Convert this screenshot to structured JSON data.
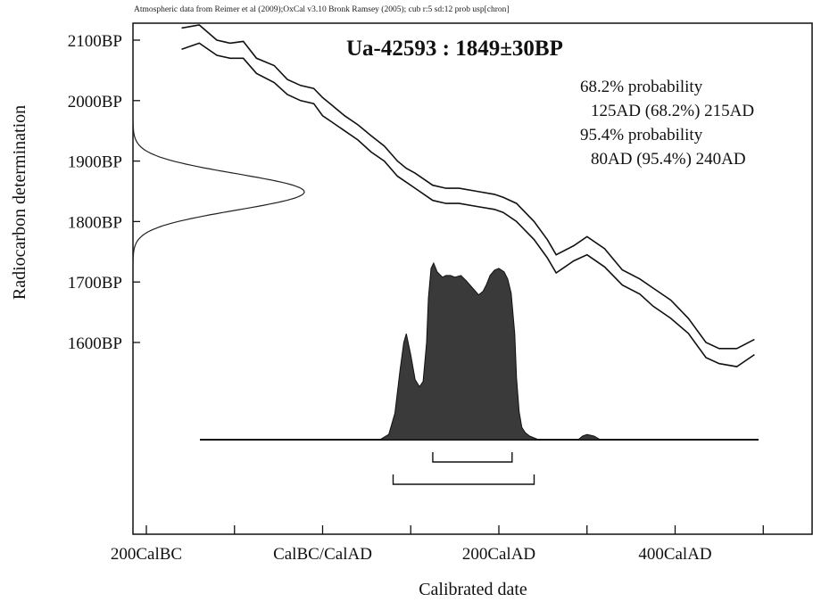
{
  "header_note": "Atmospheric data from Reimer et al (2009);OxCal v3.10 Bronk Ramsey (2005); cub r:5 sd:12 prob usp[chron]",
  "chart_data": {
    "type": "line",
    "title": "Ua-42593 : 1849±30BP",
    "xlabel": "Calibrated date",
    "ylabel": "Radiocarbon determination",
    "xlim": [
      -220,
      575
    ],
    "ylim": [
      1290,
      2125
    ],
    "x_ticks": [
      {
        "value": -200,
        "label": "200CalBC"
      },
      {
        "value": 0,
        "label": "CalBC/CalAD"
      },
      {
        "value": 200,
        "label": "200CalAD"
      },
      {
        "value": 400,
        "label": "400CalAD"
      }
    ],
    "x_minor_ticks": [
      -200,
      -100,
      0,
      100,
      200,
      300,
      400,
      500
    ],
    "y_ticks": [
      {
        "value": 2100,
        "label": "2100BP"
      },
      {
        "value": 2000,
        "label": "2000BP"
      },
      {
        "value": 1900,
        "label": "1900BP"
      },
      {
        "value": 1800,
        "label": "1800BP"
      },
      {
        "value": 1700,
        "label": "1700BP"
      },
      {
        "value": 1600,
        "label": "1600BP"
      }
    ],
    "calibration_curve": {
      "x": [
        -160,
        -140,
        -120,
        -105,
        -90,
        -75,
        -55,
        -40,
        -25,
        -10,
        0,
        10,
        25,
        40,
        55,
        70,
        85,
        95,
        105,
        125,
        140,
        155,
        175,
        195,
        205,
        220,
        240,
        255,
        265,
        285,
        300,
        320,
        340,
        360,
        375,
        395,
        415,
        435,
        450,
        470,
        490
      ],
      "upper": [
        2120,
        2125,
        2100,
        2095,
        2098,
        2070,
        2058,
        2035,
        2025,
        2020,
        2005,
        1993,
        1975,
        1960,
        1942,
        1925,
        1900,
        1888,
        1880,
        1860,
        1855,
        1855,
        1850,
        1845,
        1840,
        1830,
        1800,
        1770,
        1745,
        1760,
        1775,
        1755,
        1720,
        1705,
        1690,
        1670,
        1640,
        1600,
        1590,
        1590,
        1605
      ],
      "lower": [
        2085,
        2095,
        2075,
        2070,
        2070,
        2045,
        2030,
        2010,
        2000,
        1995,
        1975,
        1965,
        1950,
        1935,
        1915,
        1900,
        1875,
        1865,
        1855,
        1835,
        1830,
        1830,
        1825,
        1820,
        1815,
        1800,
        1770,
        1740,
        1715,
        1735,
        1745,
        1725,
        1695,
        1680,
        1660,
        1640,
        1615,
        1575,
        1565,
        1560,
        1580
      ]
    },
    "radiocarbon_date": {
      "mean": 1849,
      "sd": 30
    },
    "calibrated_distribution": {
      "x": [
        65,
        75,
        82,
        88,
        92,
        95,
        100,
        105,
        110,
        114,
        118,
        120,
        123,
        126,
        130,
        136,
        140,
        145,
        150,
        157,
        163,
        170,
        177,
        182,
        186,
        190,
        195,
        200,
        206,
        210,
        214,
        218,
        220,
        223,
        226,
        230,
        235,
        240,
        245,
        250,
        255,
        260,
        265,
        270,
        290,
        295,
        300,
        308,
        315,
        320
      ],
      "density": [
        0.0,
        0.03,
        0.15,
        0.4,
        0.55,
        0.6,
        0.48,
        0.34,
        0.3,
        0.33,
        0.55,
        0.8,
        0.97,
        1.0,
        0.95,
        0.92,
        0.93,
        0.93,
        0.92,
        0.93,
        0.9,
        0.86,
        0.82,
        0.84,
        0.88,
        0.93,
        0.96,
        0.97,
        0.95,
        0.91,
        0.83,
        0.6,
        0.35,
        0.16,
        0.07,
        0.04,
        0.02,
        0.01,
        0.0,
        0.0,
        0.0,
        0.0,
        0.0,
        0.0,
        0.0,
        0.02,
        0.03,
        0.02,
        0.0,
        0.0
      ]
    },
    "ranges": [
      {
        "probability_label": "68.2% probability",
        "range_label": "125AD (68.2%) 215AD",
        "from": 125,
        "to": 215
      },
      {
        "probability_label": "95.4% probability",
        "range_label": "80AD (95.4%) 240AD",
        "from": 80,
        "to": 240
      }
    ],
    "grid": false,
    "legend": "none"
  }
}
